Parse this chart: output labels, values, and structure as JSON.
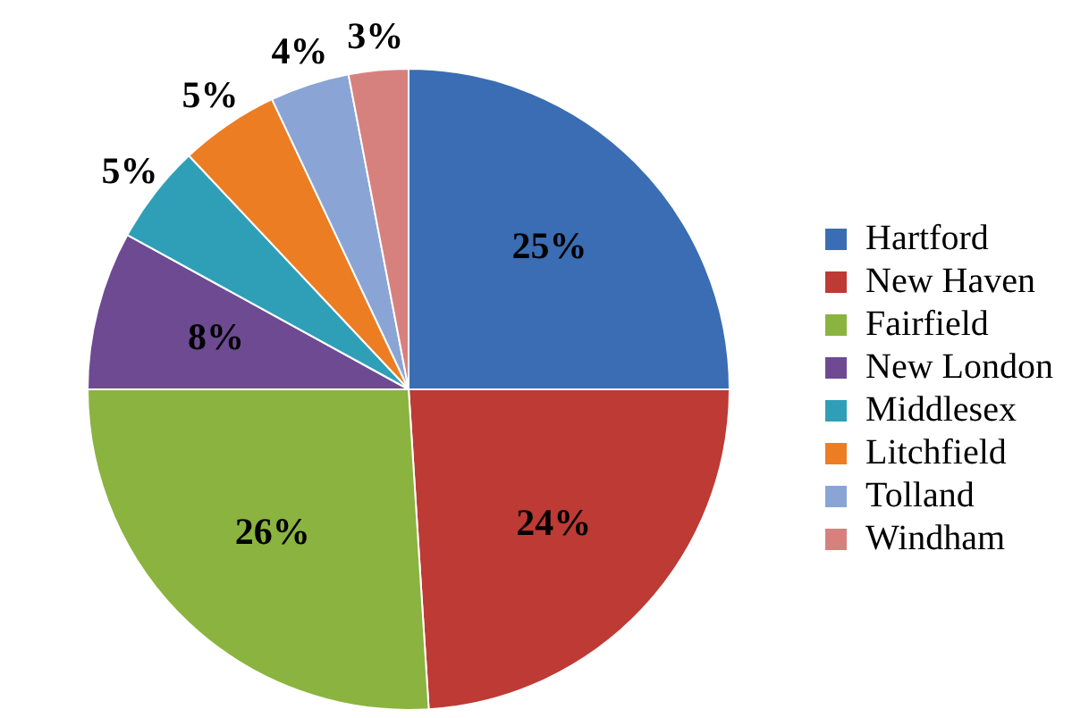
{
  "chart_data": {
    "type": "pie",
    "categories": [
      "Hartford",
      "New Haven",
      "Fairfield",
      "New London",
      "Middlesex",
      "Litchfield",
      "Tolland",
      "Windham"
    ],
    "values": [
      25,
      24,
      26,
      8,
      5,
      5,
      4,
      3
    ],
    "colors": [
      "#3a6db3",
      "#be3a35",
      "#8bb33f",
      "#6e4a93",
      "#2f9fb8",
      "#ec7d23",
      "#8aa5d5",
      "#d7817f"
    ],
    "value_labels": [
      "25%",
      "24%",
      "26%",
      "8%",
      "5%",
      "5%",
      "4%",
      "3%"
    ],
    "legend": "right"
  }
}
